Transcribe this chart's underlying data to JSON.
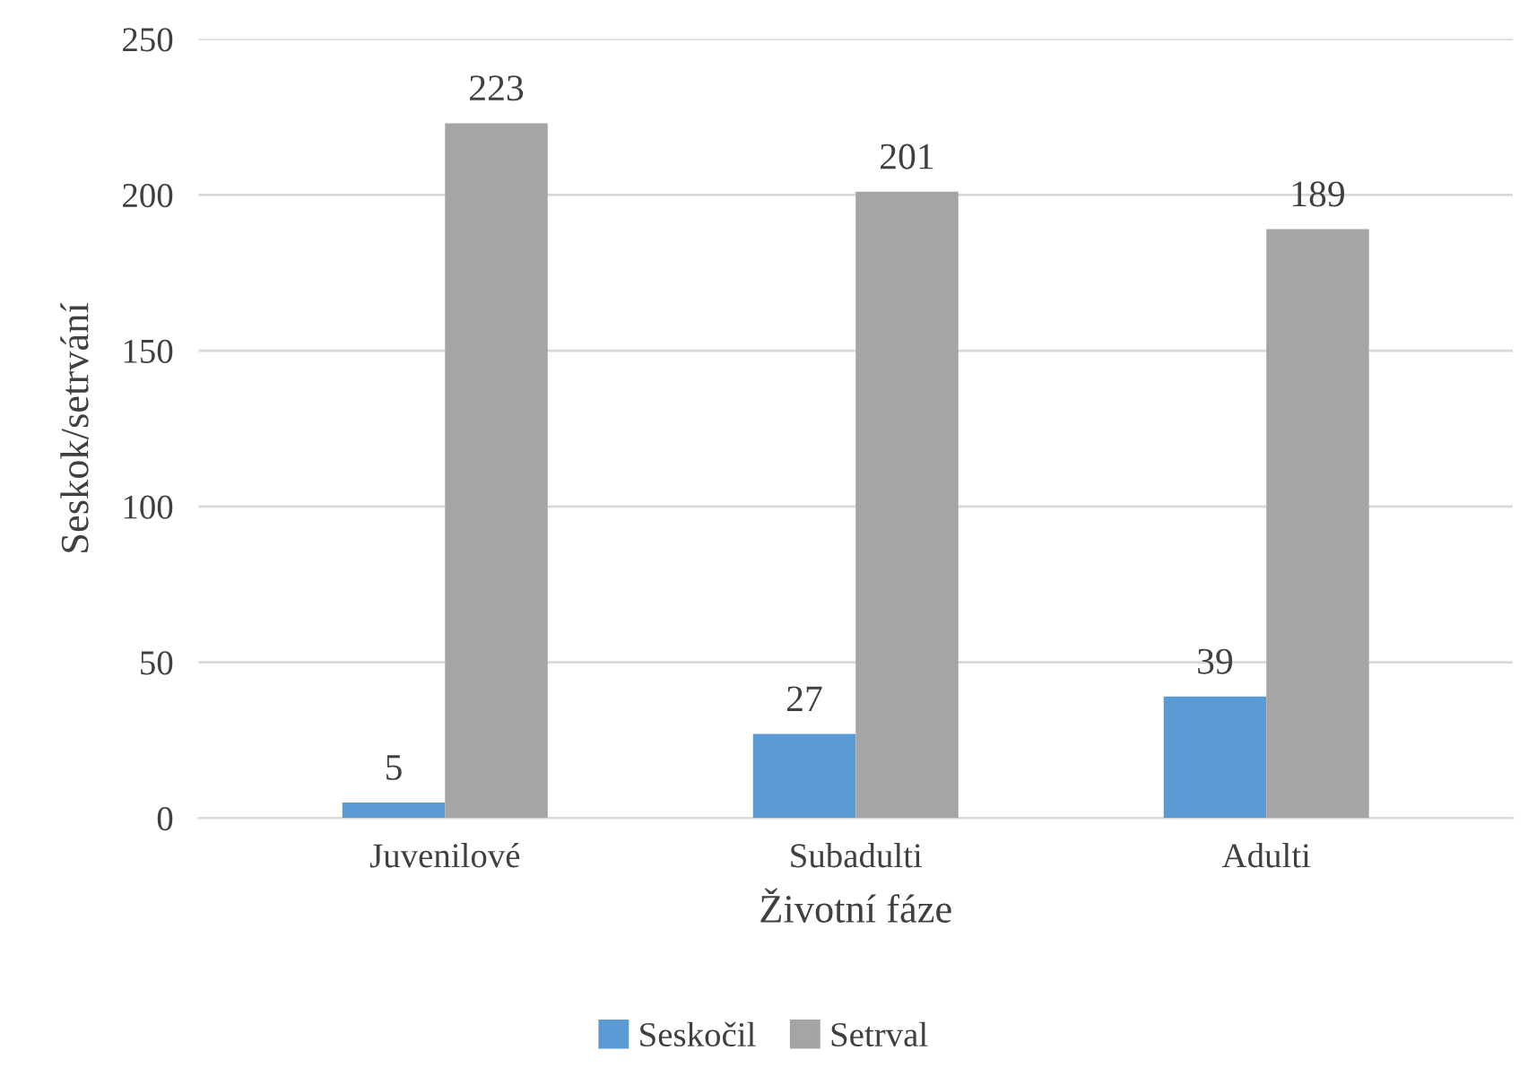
{
  "chart_data": {
    "type": "bar",
    "xlabel": "Životní fáze",
    "ylabel": "Seskok/setrvání",
    "categories": [
      "Juvenilové",
      "Subadulti",
      "Adulti"
    ],
    "series": [
      {
        "name": "Seskočil",
        "color": "#5b9bd5",
        "values": [
          5,
          27,
          39
        ]
      },
      {
        "name": "Setrval",
        "color": "#a5a5a5",
        "values": [
          223,
          201,
          189
        ]
      }
    ],
    "ylim": [
      0,
      250
    ],
    "yticks": [
      0,
      50,
      100,
      150,
      200,
      250
    ],
    "grid": "y",
    "legend": "bottom",
    "data_labels": true
  }
}
